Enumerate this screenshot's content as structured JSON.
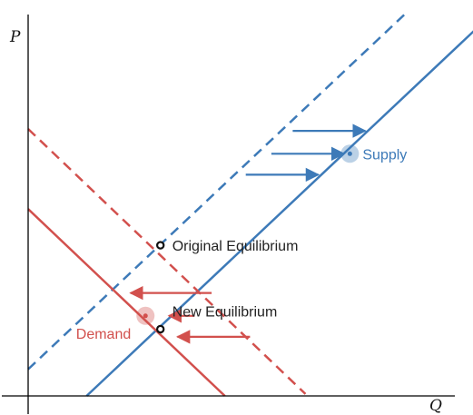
{
  "chart_data": {
    "type": "line",
    "title": "",
    "xlabel": "Q",
    "ylabel": "P",
    "xlim": [
      0,
      100
    ],
    "ylim": [
      0,
      100
    ],
    "grid": false,
    "colors": {
      "supply": "#3d7ab8",
      "demand": "#d2504d",
      "point": "#111111"
    },
    "series": [
      {
        "name": "Supply",
        "role": "supply",
        "style": "solid",
        "x": [
          13.7,
          106
        ],
        "y": [
          0,
          97.3
        ]
      },
      {
        "name": "",
        "role": "supply",
        "style": "dashed",
        "x": [
          0,
          88.2
        ],
        "y": [
          7,
          100
        ]
      },
      {
        "name": "Demand",
        "role": "demand",
        "style": "solid",
        "x": [
          0,
          46.1
        ],
        "y": [
          49,
          0
        ]
      },
      {
        "name": "",
        "role": "demand",
        "style": "dashed",
        "x": [
          0,
          65
        ],
        "y": [
          70,
          0.5
        ]
      }
    ],
    "points": [
      {
        "id": "original",
        "label": "Original Equilibrium",
        "x": 31,
        "y": 39.5
      },
      {
        "id": "new",
        "label": "New Equilibrium",
        "x": 31,
        "y": 17.5
      }
    ],
    "markers": [
      {
        "role": "supply",
        "label": "Supply",
        "x": 75.4,
        "y": 63.5
      },
      {
        "role": "demand",
        "label": "Demand",
        "x": 27.5,
        "y": 21
      }
    ],
    "arrows": [
      {
        "role": "supply",
        "x1": 62,
        "x2": 79,
        "y": 69.5
      },
      {
        "role": "supply",
        "x1": 57,
        "x2": 74,
        "y": 63.5
      },
      {
        "role": "supply",
        "x1": 51,
        "x2": 68,
        "y": 58
      },
      {
        "role": "demand",
        "x1": 43,
        "x2": 24,
        "y": 27
      },
      {
        "role": "demand",
        "x1": 39,
        "x2": 33,
        "y": 21
      },
      {
        "role": "demand",
        "x1": 52,
        "x2": 35,
        "y": 15.5
      }
    ]
  }
}
